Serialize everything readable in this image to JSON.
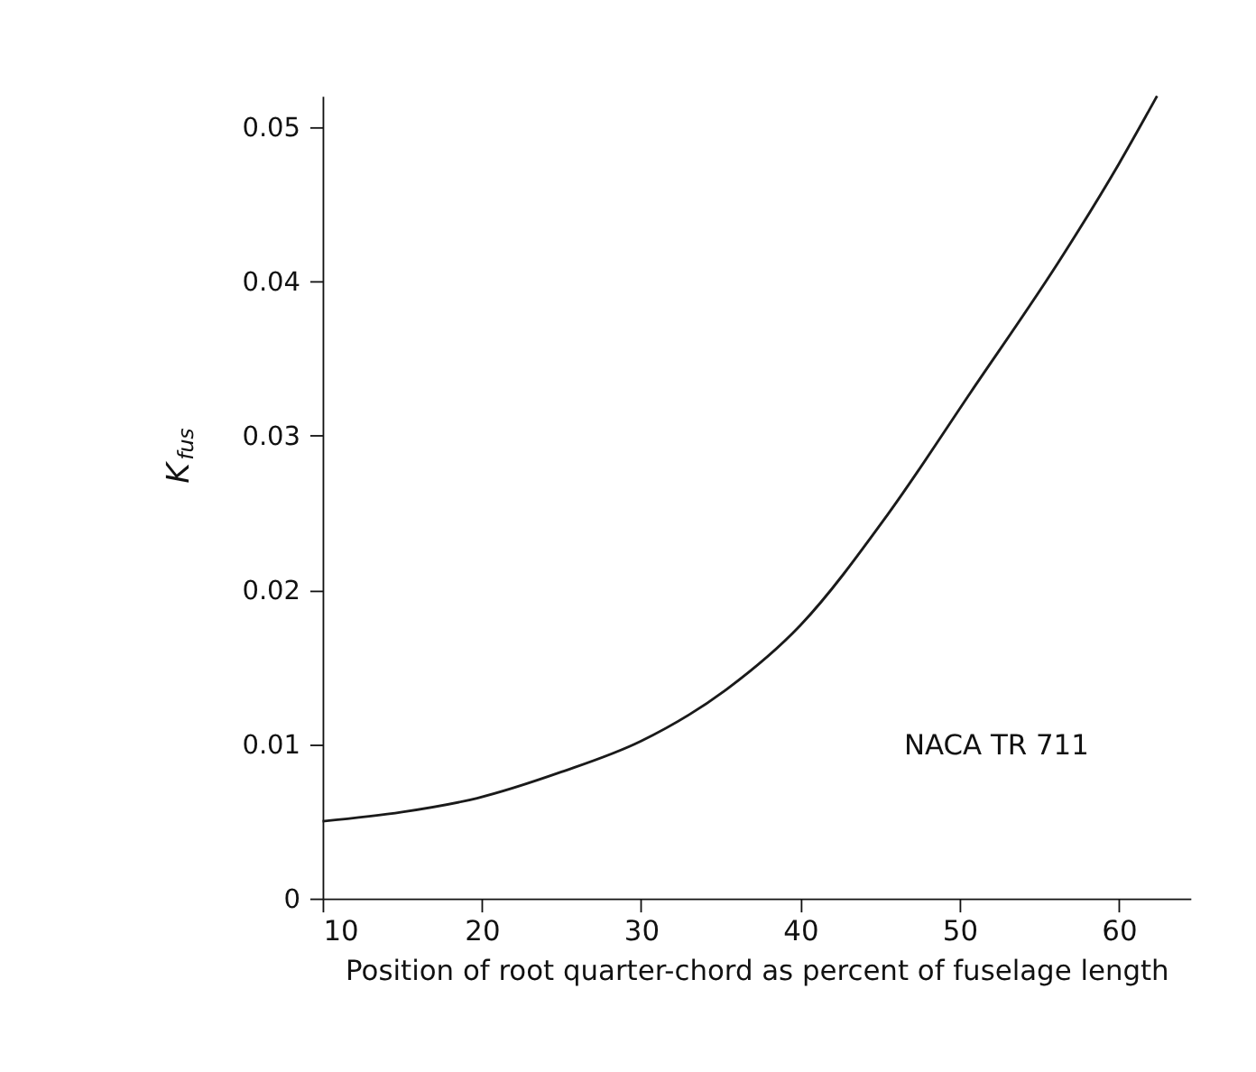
{
  "chart_data": {
    "type": "line",
    "xlabel": "Position of root quarter-chord as percent of fuselage length",
    "ylabel": "K$_{fus}$",
    "x": [
      10,
      15,
      19.7,
      25,
      30,
      35.3,
      40,
      45.5,
      50.7,
      56.5,
      60,
      62.4
    ],
    "series": [
      {
        "color": "#1a1a1a",
        "values": [
          0.005,
          0.0056,
          0.0065,
          0.0082,
          0.0102,
          0.0135,
          0.0177,
          0.0249,
          0.0328,
          0.0417,
          0.0476,
          0.052
        ]
      }
    ],
    "xlim": [
      10,
      64.5
    ],
    "ylim": [
      0,
      0.052
    ],
    "xticks": [
      10,
      20,
      30,
      40,
      50,
      60
    ],
    "yticks": [
      0,
      0.01,
      0.02,
      0.03,
      0.04,
      0.05
    ],
    "grid": false,
    "marker": "none",
    "line_style": "solid",
    "annotations": [
      "NACA TR 711"
    ]
  }
}
